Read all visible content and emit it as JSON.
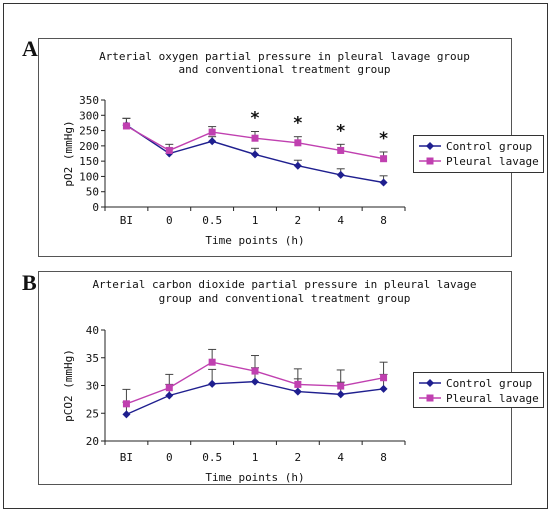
{
  "figure": {
    "panel_a_letter": "A",
    "panel_b_letter": "B"
  },
  "chart_data": [
    {
      "type": "line",
      "title": "Arterial oxygen partial pressure in pleural lavage group and conventional treatment group",
      "title_lines": [
        "Arterial oxygen partial pressure in pleural lavage group",
        "and conventional treatment group"
      ],
      "xlabel": "Time points (h)",
      "ylabel": "pO2 (mmHg)",
      "categories": [
        "BI",
        "0",
        "0.5",
        "1",
        "2",
        "4",
        "8"
      ],
      "ylim": [
        0,
        350
      ],
      "yticks": [
        0,
        50,
        100,
        150,
        200,
        250,
        300,
        350
      ],
      "series": [
        {
          "name": "Control group",
          "color": "#1f1f8f",
          "marker": "diamond",
          "values": [
            268,
            175,
            215,
            172,
            135,
            105,
            80
          ],
          "errors": [
            22,
            18,
            15,
            20,
            18,
            20,
            22
          ]
        },
        {
          "name": "Pleural lavage",
          "color": "#c040b0",
          "marker": "square",
          "values": [
            265,
            185,
            245,
            225,
            210,
            185,
            158
          ],
          "errors": [
            25,
            20,
            18,
            22,
            20,
            20,
            22
          ]
        }
      ],
      "significance": {
        "marker": "*",
        "categories": [
          "1",
          "2",
          "4",
          "8"
        ]
      },
      "legend": "right"
    },
    {
      "type": "line",
      "title": "Arterial carbon dioxide partial pressure in pleural lavage group and conventional treatment group",
      "title_lines": [
        "Arterial carbon dioxide partial pressure in pleural lavage",
        "group and conventional treatment group"
      ],
      "xlabel": "Time points (h)",
      "ylabel": "pCO2 (mmHg)",
      "categories": [
        "BI",
        "0",
        "0.5",
        "1",
        "2",
        "4",
        "8"
      ],
      "ylim": [
        20,
        40
      ],
      "yticks": [
        20,
        25,
        30,
        35,
        40
      ],
      "series": [
        {
          "name": "Control group",
          "color": "#1f1f8f",
          "marker": "diamond",
          "values": [
            24.8,
            28.2,
            30.3,
            30.7,
            28.9,
            28.4,
            29.4
          ],
          "errors": [
            2.2,
            2.0,
            2.6,
            2.5,
            2.3,
            2.2,
            2.6
          ]
        },
        {
          "name": "Pleural lavage",
          "color": "#c040b0",
          "marker": "square",
          "values": [
            26.7,
            29.6,
            34.2,
            32.6,
            30.2,
            29.9,
            31.4
          ],
          "errors": [
            2.6,
            2.4,
            2.3,
            2.8,
            2.8,
            2.9,
            2.8
          ]
        }
      ],
      "legend": "right"
    }
  ]
}
